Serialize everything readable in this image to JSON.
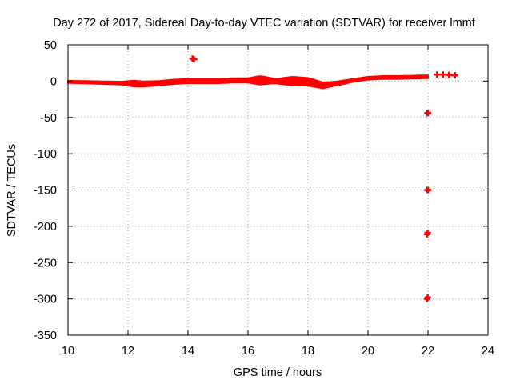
{
  "chart_data": {
    "type": "scatter",
    "title": "Day 272 of 2017, Sidereal Day-to-day VTEC variation (SDTVAR) for receiver lmmf",
    "xlabel": "GPS time / hours",
    "ylabel": "SDTVAR / TECUs",
    "xlim": [
      10,
      24
    ],
    "ylim": [
      -350,
      50
    ],
    "xticks": [
      10,
      12,
      14,
      16,
      18,
      20,
      22,
      24
    ],
    "yticks": [
      50,
      0,
      -50,
      -100,
      -150,
      -200,
      -250,
      -300,
      -350
    ],
    "grid": true,
    "marker_color": "#ff0000",
    "series": [
      {
        "name": "SDTVAR",
        "band": [
          [
            10.0,
            -1
          ],
          [
            10.5,
            -1.5
          ],
          [
            11.0,
            -2
          ],
          [
            11.5,
            -2.5
          ],
          [
            12.0,
            -3
          ],
          [
            12.5,
            -4
          ],
          [
            13.0,
            -3
          ],
          [
            13.5,
            -1
          ],
          [
            14.0,
            0
          ],
          [
            14.5,
            0
          ],
          [
            15.0,
            0
          ],
          [
            15.5,
            1
          ],
          [
            16.0,
            1
          ],
          [
            16.5,
            1
          ],
          [
            17.0,
            0
          ],
          [
            17.5,
            0
          ],
          [
            18.0,
            -1
          ],
          [
            18.5,
            -6
          ],
          [
            19.0,
            -3
          ],
          [
            19.5,
            1
          ],
          [
            20.0,
            4
          ],
          [
            20.5,
            5
          ],
          [
            21.0,
            5
          ],
          [
            21.5,
            5.5
          ],
          [
            22.0,
            6
          ]
        ],
        "band_halfwidth": [
          [
            10.0,
            1.5
          ],
          [
            11.8,
            2
          ],
          [
            12.2,
            4
          ],
          [
            13.0,
            3
          ],
          [
            14.2,
            3
          ],
          [
            15.0,
            3
          ],
          [
            16.0,
            3
          ],
          [
            16.4,
            6
          ],
          [
            16.9,
            3
          ],
          [
            17.5,
            6
          ],
          [
            18.2,
            5
          ],
          [
            18.8,
            3
          ],
          [
            19.5,
            2
          ],
          [
            20.5,
            2
          ],
          [
            22.0,
            2
          ]
        ],
        "points": [
          [
            14.15,
            31
          ],
          [
            14.2,
            30
          ],
          [
            22.3,
            9
          ],
          [
            22.5,
            9
          ],
          [
            22.7,
            8.5
          ],
          [
            22.9,
            8
          ],
          [
            21.98,
            -44
          ],
          [
            22.0,
            -44
          ],
          [
            21.98,
            -150
          ],
          [
            22.0,
            -150
          ],
          [
            21.97,
            -211
          ],
          [
            21.99,
            -209
          ],
          [
            21.97,
            -300
          ],
          [
            21.99,
            -298
          ]
        ]
      }
    ]
  }
}
